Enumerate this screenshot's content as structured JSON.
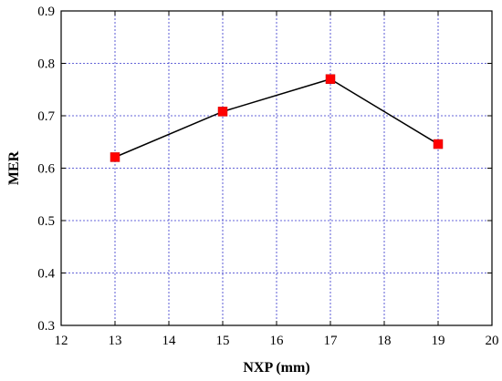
{
  "chart_data": {
    "type": "line",
    "xlabel": "NXP (mm)",
    "ylabel": "MER",
    "xlim": [
      12,
      20
    ],
    "ylim": [
      0.3,
      0.9
    ],
    "x_ticks": [
      "12",
      "13",
      "14",
      "15",
      "16",
      "17",
      "18",
      "19",
      "20"
    ],
    "y_ticks": [
      "0.3",
      "0.4",
      "0.5",
      "0.6",
      "0.7",
      "0.8",
      "0.9"
    ],
    "grid": true,
    "grid_color": "#3333cc",
    "marker": "square",
    "marker_color": "#ff0000",
    "line_color": "#000000",
    "series": [
      {
        "x": [
          13,
          15,
          17,
          19
        ],
        "values": [
          0.621,
          0.708,
          0.77,
          0.646
        ]
      }
    ]
  }
}
